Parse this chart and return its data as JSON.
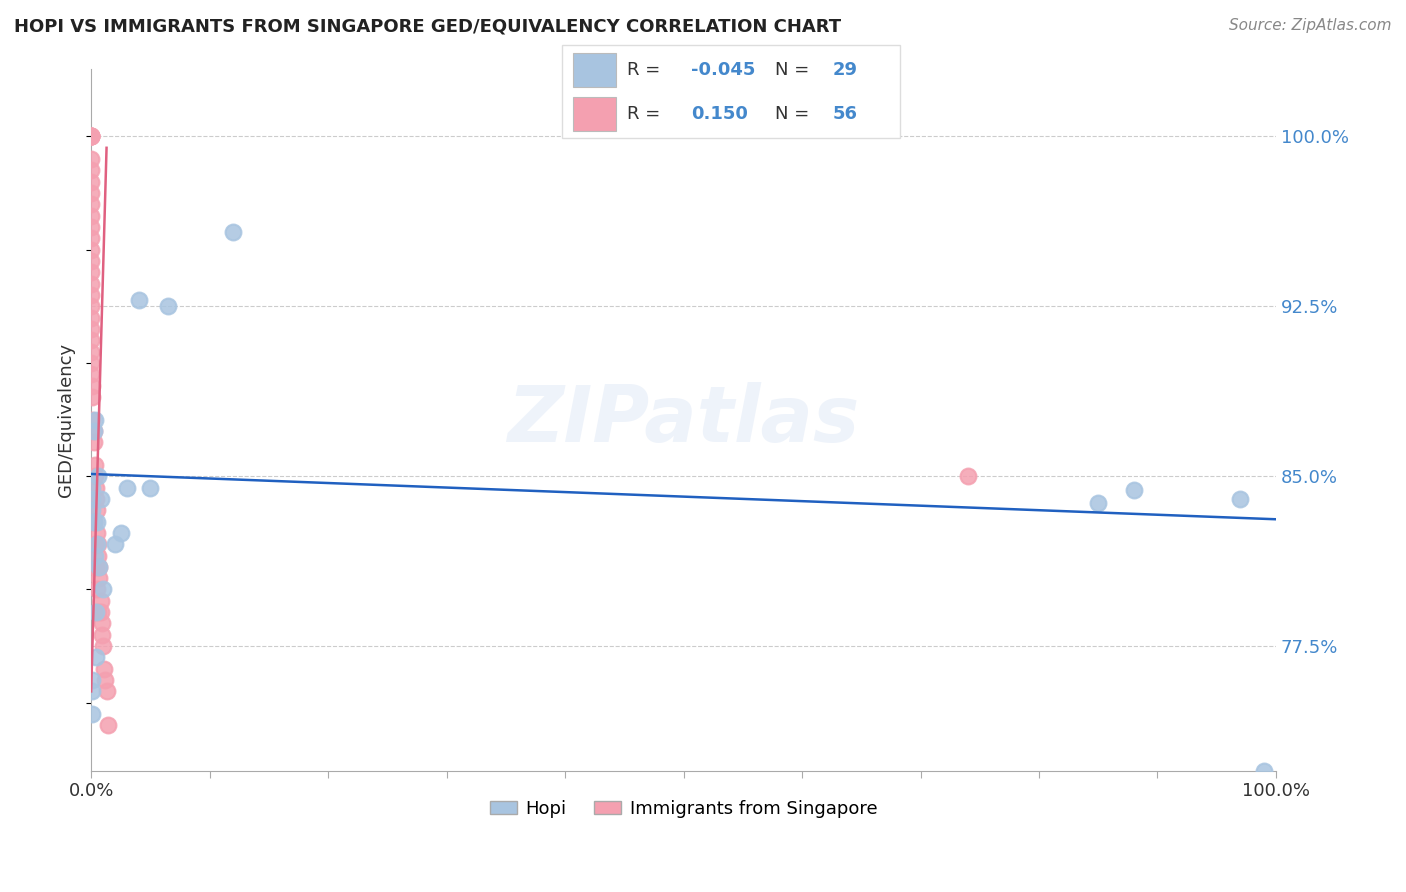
{
  "title": "HOPI VS IMMIGRANTS FROM SINGAPORE GED/EQUIVALENCY CORRELATION CHART",
  "source": "Source: ZipAtlas.com",
  "ylabel": "GED/Equivalency",
  "legend_label1": "Hopi",
  "legend_label2": "Immigrants from Singapore",
  "R1": "-0.045",
  "N1": "29",
  "R2": "0.150",
  "N2": "56",
  "blue_color": "#a8c4e0",
  "pink_color": "#f4a0b0",
  "blue_line_color": "#2060c0",
  "pink_line_color": "#e06080",
  "watermark": "ZIPatlas",
  "hopi_x": [
    0.001,
    0.001,
    0.001,
    0.001,
    0.001,
    0.001,
    0.002,
    0.002,
    0.003,
    0.003,
    0.004,
    0.004,
    0.005,
    0.005,
    0.006,
    0.007,
    0.008,
    0.01,
    0.02,
    0.025,
    0.03,
    0.04,
    0.05,
    0.065,
    0.12,
    0.85,
    0.88,
    0.97,
    0.99
  ],
  "hopi_y": [
    0.845,
    0.84,
    0.835,
    0.76,
    0.755,
    0.745,
    0.87,
    0.83,
    0.875,
    0.815,
    0.79,
    0.77,
    0.83,
    0.82,
    0.85,
    0.81,
    0.84,
    0.8,
    0.82,
    0.825,
    0.845,
    0.928,
    0.845,
    0.925,
    0.958,
    0.838,
    0.844,
    0.84,
    0.72
  ],
  "singapore_x": [
    0.0,
    0.0,
    0.0,
    0.0,
    0.0,
    0.0,
    0.0,
    0.0,
    0.0,
    0.0,
    0.0,
    0.0,
    0.0,
    0.0,
    0.0,
    0.0,
    0.0,
    0.0,
    0.0,
    0.0,
    0.0,
    0.0,
    0.0,
    0.0,
    0.0,
    0.001,
    0.001,
    0.001,
    0.002,
    0.002,
    0.003,
    0.003,
    0.004,
    0.004,
    0.005,
    0.005,
    0.006,
    0.006,
    0.007,
    0.007,
    0.008,
    0.008,
    0.009,
    0.009,
    0.01,
    0.011,
    0.012,
    0.013,
    0.014,
    0.74,
    0.001,
    0.002,
    0.003,
    0.004,
    0.005,
    0.006
  ],
  "singapore_y": [
    1.0,
    1.0,
    1.0,
    1.0,
    1.0,
    0.99,
    0.985,
    0.98,
    0.975,
    0.97,
    0.965,
    0.96,
    0.955,
    0.95,
    0.945,
    0.94,
    0.935,
    0.93,
    0.925,
    0.92,
    0.915,
    0.91,
    0.905,
    0.9,
    0.895,
    0.89,
    0.885,
    0.875,
    0.87,
    0.865,
    0.855,
    0.85,
    0.845,
    0.84,
    0.835,
    0.825,
    0.82,
    0.815,
    0.81,
    0.805,
    0.795,
    0.79,
    0.785,
    0.78,
    0.775,
    0.765,
    0.76,
    0.755,
    0.74,
    0.85,
    0.84,
    0.83,
    0.82,
    0.81,
    0.8,
    0.79
  ],
  "xlim": [
    0.0,
    1.0
  ],
  "ylim": [
    0.72,
    1.03
  ],
  "hopi_trend_x": [
    0.0,
    1.0
  ],
  "hopi_trend_y": [
    0.851,
    0.831
  ],
  "sing_trend_x0": 0.0,
  "sing_trend_x1": 0.013,
  "sing_trend_y0": 0.755,
  "sing_trend_y1": 0.995
}
